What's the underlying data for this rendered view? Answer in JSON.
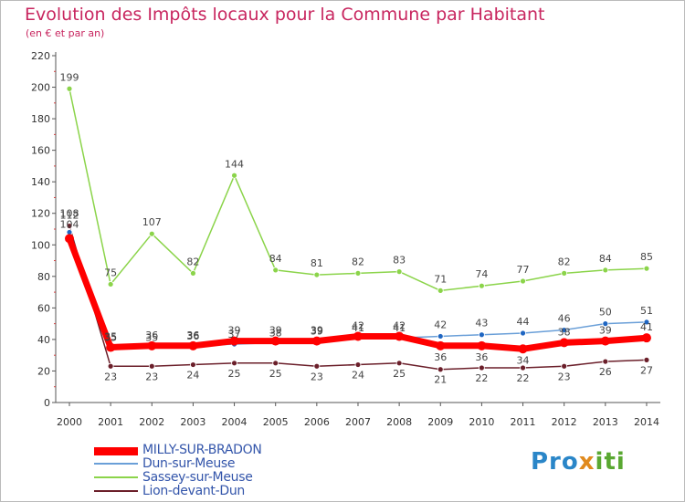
{
  "chart_data": {
    "type": "line",
    "title": "Evolution des Impôts locaux pour la Commune par Habitant",
    "subtitle": "(en € et par an)",
    "xlabel": "",
    "ylabel": "",
    "categories": [
      "2000",
      "2001",
      "2002",
      "2003",
      "2004",
      "2005",
      "2006",
      "2007",
      "2008",
      "2009",
      "2010",
      "2011",
      "2012",
      "2013",
      "2014"
    ],
    "ylim": [
      0,
      220
    ],
    "yticks": [
      0,
      20,
      40,
      60,
      80,
      100,
      120,
      140,
      160,
      180,
      200,
      220
    ],
    "grid": false,
    "series": [
      {
        "name": "MILLY-SUR-BRADON",
        "color": "#ff0000",
        "values": [
          104,
          35,
          36,
          36,
          39,
          39,
          39,
          42,
          42,
          36,
          36,
          34,
          38,
          39,
          41
        ]
      },
      {
        "name": "Dun-sur-Meuse",
        "color": "#6a9fd8",
        "values": [
          108,
          35,
          35,
          36,
          37,
          38,
          39,
          41,
          41,
          42,
          43,
          44,
          46,
          50,
          51
        ]
      },
      {
        "name": "Sassey-sur-Meuse",
        "color": "#8bd44a",
        "values": [
          199,
          75,
          107,
          82,
          144,
          84,
          81,
          82,
          83,
          71,
          74,
          77,
          82,
          84,
          85
        ]
      },
      {
        "name": "Lion-devant-Dun",
        "color": "#6b1f2a",
        "values": [
          112,
          23,
          23,
          24,
          25,
          25,
          23,
          24,
          25,
          21,
          22,
          22,
          23,
          26,
          27
        ]
      }
    ]
  },
  "legend": {
    "items": [
      {
        "label": "MILLY-SUR-BRADON",
        "color": "#ff0000"
      },
      {
        "label": "Dun-sur-Meuse",
        "color": "#6a9fd8"
      },
      {
        "label": "Sassey-sur-Meuse",
        "color": "#8bd44a"
      },
      {
        "label": "Lion-devant-Dun",
        "color": "#6b1f2a"
      }
    ]
  },
  "logo": {
    "part1": "Pro",
    "part2": "x",
    "part3": "iti"
  },
  "colors": {
    "title": "#c8265f",
    "axis": "#555555",
    "tick_text": "#333333",
    "marker_fill": "#1f66c2"
  }
}
